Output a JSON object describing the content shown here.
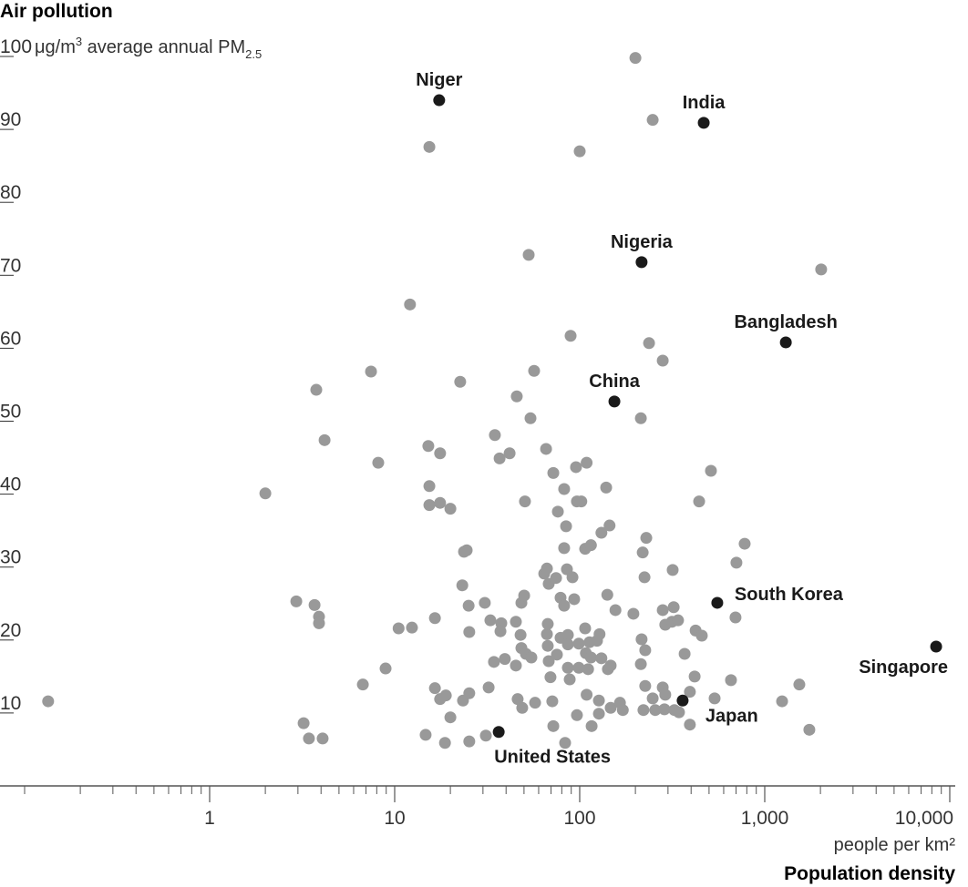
{
  "chart_data": {
    "type": "scatter",
    "title": "Air pollution",
    "ylabel": "Air pollution",
    "yunit": {
      "value_prefix": "100",
      "text": " μg/m",
      "sup": "3",
      "text2": " average annual PM",
      "sub": "2.5"
    },
    "xlabel": "Population density",
    "xunit": "people per km²",
    "xscale": "log",
    "xlim": [
      0.1,
      12000
    ],
    "ylim": [
      0,
      100
    ],
    "xticks": [
      {
        "value": 1,
        "label": "1"
      },
      {
        "value": 10,
        "label": "10"
      },
      {
        "value": 100,
        "label": "100"
      },
      {
        "value": 1000,
        "label": "1,000"
      },
      {
        "value": 10000,
        "label": "10,000"
      }
    ],
    "yticks": [
      {
        "value": 10,
        "label": "10"
      },
      {
        "value": 20,
        "label": "20"
      },
      {
        "value": 30,
        "label": "30"
      },
      {
        "value": 40,
        "label": "40"
      },
      {
        "value": 50,
        "label": "50"
      },
      {
        "value": 60,
        "label": "60"
      },
      {
        "value": 70,
        "label": "70"
      },
      {
        "value": 80,
        "label": "80"
      },
      {
        "value": 90,
        "label": "90"
      },
      {
        "value": 100,
        "label": "100"
      }
    ],
    "grid": false,
    "colors": {
      "other": "#999999",
      "highlight": "#1a1a1a",
      "axis": "#333333"
    },
    "highlighted": [
      {
        "name": "Niger",
        "x": 17.4,
        "y": 94.0,
        "label_position": "above"
      },
      {
        "name": "India",
        "x": 468,
        "y": 90.9,
        "label_position": "above"
      },
      {
        "name": "Nigeria",
        "x": 216,
        "y": 71.8,
        "label_position": "above"
      },
      {
        "name": "Bangladesh",
        "x": 1300,
        "y": 60.8,
        "label_position": "above"
      },
      {
        "name": "China",
        "x": 154,
        "y": 52.7,
        "label_position": "above"
      },
      {
        "name": "South Korea",
        "x": 554,
        "y": 25.1,
        "label_position": "right"
      },
      {
        "name": "Singapore",
        "x": 8440,
        "y": 19.1,
        "label_position": "below-left"
      },
      {
        "name": "Japan",
        "x": 360,
        "y": 11.7,
        "label_position": "below-right"
      },
      {
        "name": "United States",
        "x": 36.5,
        "y": 7.4,
        "label_position": "below"
      }
    ],
    "points": [
      [
        0.134,
        11.6
      ],
      [
        2.0,
        40.1
      ],
      [
        2.94,
        25.3
      ],
      [
        3.22,
        8.6
      ],
      [
        3.44,
        6.5
      ],
      [
        3.69,
        24.8
      ],
      [
        3.9,
        23.2
      ],
      [
        3.9,
        22.3
      ],
      [
        4.08,
        6.5
      ],
      [
        3.77,
        54.3
      ],
      [
        4.18,
        47.4
      ],
      [
        6.73,
        13.9
      ],
      [
        7.45,
        56.8
      ],
      [
        8.15,
        44.3
      ],
      [
        8.93,
        16.1
      ],
      [
        10.5,
        21.6
      ],
      [
        12.4,
        21.7
      ],
      [
        12.1,
        66.0
      ],
      [
        14.7,
        7.0
      ],
      [
        15.4,
        87.6
      ],
      [
        15.4,
        41.1
      ],
      [
        15.4,
        38.5
      ],
      [
        15.2,
        46.6
      ],
      [
        16.5,
        23.0
      ],
      [
        16.5,
        13.4
      ],
      [
        17.6,
        38.8
      ],
      [
        17.6,
        45.6
      ],
      [
        17.6,
        11.9
      ],
      [
        18.7,
        5.9
      ],
      [
        18.9,
        12.4
      ],
      [
        20.0,
        9.4
      ],
      [
        20.0,
        38.0
      ],
      [
        22.6,
        55.4
      ],
      [
        23.2,
        27.5
      ],
      [
        23.7,
        32.1
      ],
      [
        24.5,
        32.3
      ],
      [
        23.4,
        11.7
      ],
      [
        25.3,
        12.7
      ],
      [
        25.1,
        24.7
      ],
      [
        25.3,
        21.1
      ],
      [
        25.3,
        6.1
      ],
      [
        30.7,
        25.1
      ],
      [
        31.1,
        6.9
      ],
      [
        32.2,
        13.5
      ],
      [
        32.9,
        22.7
      ],
      [
        34.4,
        17.0
      ],
      [
        34.8,
        48.1
      ],
      [
        36.9,
        44.9
      ],
      [
        37.7,
        22.3
      ],
      [
        37.3,
        21.2
      ],
      [
        39.4,
        17.4
      ],
      [
        41.8,
        45.6
      ],
      [
        45.2,
        22.5
      ],
      [
        45.2,
        16.5
      ],
      [
        45.7,
        53.4
      ],
      [
        46.2,
        11.9
      ],
      [
        47.9,
        20.7
      ],
      [
        48.4,
        18.9
      ],
      [
        48.4,
        25.1
      ],
      [
        48.9,
        10.7
      ],
      [
        50.1,
        26.1
      ],
      [
        50.6,
        39.0
      ],
      [
        51.2,
        18.1
      ],
      [
        53.0,
        72.8
      ],
      [
        54.2,
        50.4
      ],
      [
        54.8,
        17.6
      ],
      [
        56.7,
        56.9
      ],
      [
        57.4,
        11.4
      ],
      [
        64.3,
        29.1
      ],
      [
        65.8,
        46.2
      ],
      [
        66.5,
        29.8
      ],
      [
        66.5,
        20.8
      ],
      [
        67.2,
        22.2
      ],
      [
        67.2,
        19.2
      ],
      [
        68.0,
        27.7
      ],
      [
        68.0,
        17.1
      ],
      [
        69.5,
        14.9
      ],
      [
        71.1,
        11.6
      ],
      [
        72.0,
        42.9
      ],
      [
        72.0,
        8.2
      ],
      [
        74.5,
        28.5
      ],
      [
        75.3,
        18.0
      ],
      [
        76.2,
        37.6
      ],
      [
        78.8,
        25.8
      ],
      [
        78.8,
        20.3
      ],
      [
        82.4,
        40.7
      ],
      [
        82.4,
        32.6
      ],
      [
        82.4,
        24.7
      ],
      [
        83.4,
        5.9
      ],
      [
        84.4,
        35.6
      ],
      [
        85.3,
        29.7
      ],
      [
        86.3,
        20.7
      ],
      [
        86.3,
        19.4
      ],
      [
        86.3,
        16.2
      ],
      [
        88.3,
        14.6
      ],
      [
        89.3,
        61.7
      ],
      [
        91.4,
        28.6
      ],
      [
        93.4,
        25.6
      ],
      [
        95.5,
        43.7
      ],
      [
        96.6,
        39.0
      ],
      [
        102,
        39.0
      ],
      [
        96.6,
        9.7
      ],
      [
        98.9,
        19.5
      ],
      [
        98.9,
        16.2
      ],
      [
        100,
        87.0
      ],
      [
        107,
        32.5
      ],
      [
        107,
        21.6
      ],
      [
        108,
        18.2
      ],
      [
        109,
        44.3
      ],
      [
        109,
        12.5
      ],
      [
        111,
        16.0
      ],
      [
        113,
        19.7
      ],
      [
        115,
        33.0
      ],
      [
        115,
        17.6
      ],
      [
        116,
        8.2
      ],
      [
        124,
        19.9
      ],
      [
        127,
        11.7
      ],
      [
        127,
        9.9
      ],
      [
        128,
        20.8
      ],
      [
        131,
        34.7
      ],
      [
        131,
        17.5
      ],
      [
        139,
        40.9
      ],
      [
        141,
        26.2
      ],
      [
        142,
        16.0
      ],
      [
        145,
        35.7
      ],
      [
        147,
        16.5
      ],
      [
        147,
        10.7
      ],
      [
        156,
        24.1
      ],
      [
        165,
        11.4
      ],
      [
        171,
        10.4
      ],
      [
        195,
        23.6
      ],
      [
        200,
        99.8
      ],
      [
        214,
        16.7
      ],
      [
        214,
        50.4
      ],
      [
        216,
        20.1
      ],
      [
        219,
        32.0
      ],
      [
        221,
        10.4
      ],
      [
        224,
        28.6
      ],
      [
        226,
        18.6
      ],
      [
        226,
        13.7
      ],
      [
        229,
        34.0
      ],
      [
        237,
        60.7
      ],
      [
        248,
        91.3
      ],
      [
        248,
        12.0
      ],
      [
        256,
        10.4
      ],
      [
        281,
        13.5
      ],
      [
        281,
        58.3
      ],
      [
        281,
        24.1
      ],
      [
        287,
        10.5
      ],
      [
        290,
        22.1
      ],
      [
        290,
        12.5
      ],
      [
        315,
        22.5
      ],
      [
        318,
        29.6
      ],
      [
        322,
        24.5
      ],
      [
        325,
        10.4
      ],
      [
        340,
        22.7
      ],
      [
        344,
        10.1
      ],
      [
        369,
        18.1
      ],
      [
        394,
        12.9
      ],
      [
        394,
        8.4
      ],
      [
        418,
        15.0
      ],
      [
        423,
        21.3
      ],
      [
        442,
        39.0
      ],
      [
        457,
        20.6
      ],
      [
        512,
        43.2
      ],
      [
        536,
        12.0
      ],
      [
        657,
        14.5
      ],
      [
        695,
        23.1
      ],
      [
        703,
        30.6
      ],
      [
        779,
        33.2
      ],
      [
        1241,
        11.6
      ],
      [
        1538,
        13.9
      ],
      [
        1742,
        7.7
      ],
      [
        2018,
        70.8
      ]
    ]
  }
}
